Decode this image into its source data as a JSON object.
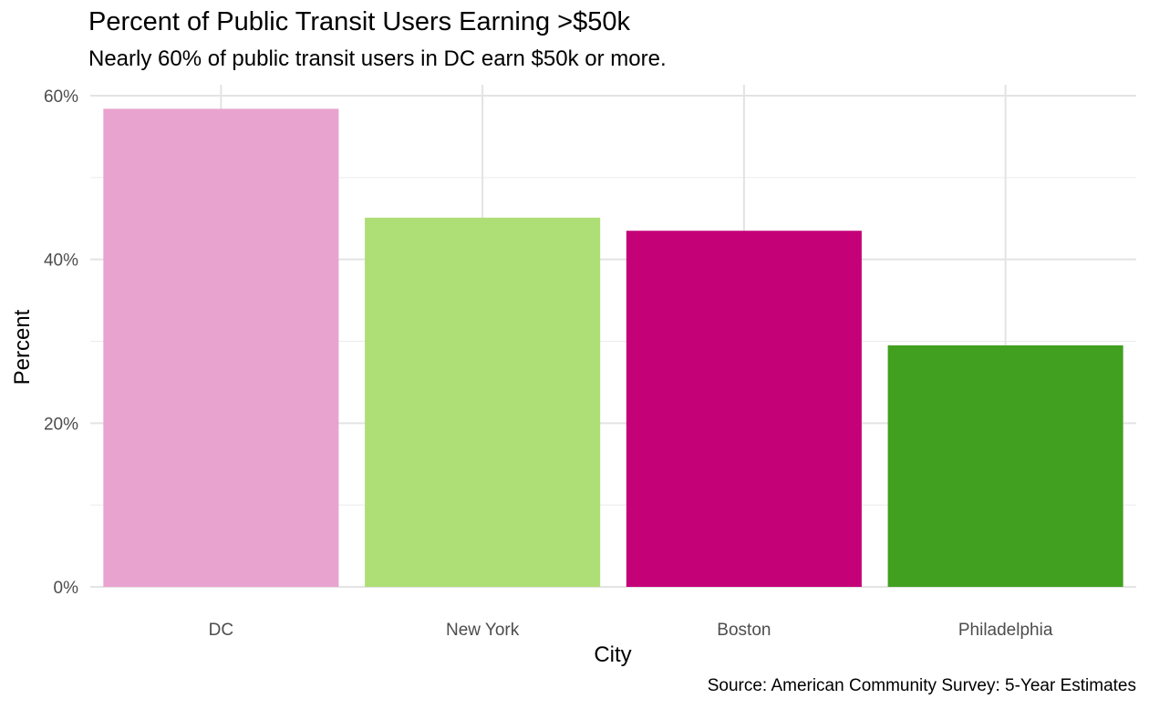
{
  "chart_data": {
    "type": "bar",
    "title": "Percent of Public Transit Users Earning >$50k",
    "subtitle": "Nearly 60% of public transit users in DC earn $50k or more.",
    "xlabel": "City",
    "ylabel": "Percent",
    "caption": "Source: American Community Survey: 5-Year Estimates",
    "categories": [
      "DC",
      "New York",
      "Boston",
      "Philadelphia"
    ],
    "values": [
      58.4,
      45.1,
      43.5,
      29.5
    ],
    "ylim": [
      0,
      61
    ],
    "yticks": [
      0,
      20,
      40,
      60
    ],
    "ytick_labels": [
      "0%",
      "20%",
      "40%",
      "60%"
    ],
    "grid": true,
    "legend": "none",
    "colors": [
      "#E9A3CF",
      "#AEDE76",
      "#C50178",
      "#41A020"
    ]
  }
}
